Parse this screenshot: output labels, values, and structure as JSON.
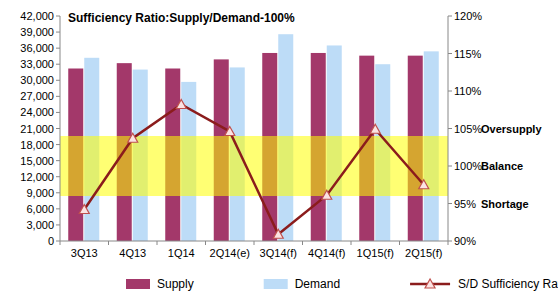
{
  "chart_data": {
    "type": "bar",
    "title": "Sufficiency Ratio:Supply/Demand-100%",
    "categories": [
      "3Q13",
      "4Q13",
      "1Q14",
      "2Q14(e)",
      "3Q14(f)",
      "4Q14(f)",
      "1Q15(f)",
      "2Q15(f)"
    ],
    "series": [
      {
        "name": "Supply",
        "color": "#a3386a",
        "values": [
          32200,
          33200,
          32200,
          33900,
          35100,
          35100,
          34600,
          34600
        ]
      },
      {
        "name": "Demand",
        "color": "#bddcf7",
        "values": [
          34200,
          32000,
          29700,
          32400,
          38600,
          36500,
          33000,
          35400
        ]
      },
      {
        "name": "S/D Sufficiency Ratio",
        "type": "line",
        "axis": "y2",
        "color": "#8b1c1c",
        "marker": "triangle",
        "values": [
          94.2,
          103.7,
          108.2,
          104.6,
          90.9,
          96.1,
          104.9,
          97.5
        ]
      }
    ],
    "ylim": [
      0,
      42000
    ],
    "yticks": [
      0,
      {
        "value": 3000,
        "label": "3,000"
      },
      {
        "value": 6000,
        "label": "6,000"
      },
      {
        "value": 9000,
        "label": "9,000"
      },
      {
        "value": 12000,
        "label": "12,000"
      },
      {
        "value": 15000,
        "label": "15,000"
      },
      {
        "value": 18000,
        "label": "18,000"
      },
      {
        "value": 21000,
        "label": "21,000"
      },
      {
        "value": 24000,
        "label": "24,000"
      },
      {
        "value": 27000,
        "label": "27,000"
      },
      {
        "value": 30000,
        "label": "30,000"
      },
      {
        "value": 33000,
        "label": "33,000"
      },
      {
        "value": 36000,
        "label": "36,000"
      },
      {
        "value": 39000,
        "label": "39,000"
      },
      {
        "value": 42000,
        "label": "42,000"
      }
    ],
    "y2lim": [
      90,
      120
    ],
    "y2ticks": [
      {
        "value": 90,
        "label": "90%"
      },
      {
        "value": 95,
        "label": "95%"
      },
      {
        "value": 100,
        "label": "100%"
      },
      {
        "value": 105,
        "label": "105%"
      },
      {
        "value": 110,
        "label": "110%"
      },
      {
        "value": 115,
        "label": "115%"
      },
      {
        "value": 120,
        "label": "120%"
      }
    ],
    "bands": [
      {
        "axis": "y2",
        "from": 96,
        "to": 104,
        "color": "#ffff00"
      }
    ],
    "annotations": [
      {
        "text": "Oversupply",
        "y2": 105
      },
      {
        "text": "Balance",
        "y2": 100
      },
      {
        "text": "Shortage",
        "y2": 95
      }
    ],
    "grid": false,
    "legend": "bottom"
  }
}
